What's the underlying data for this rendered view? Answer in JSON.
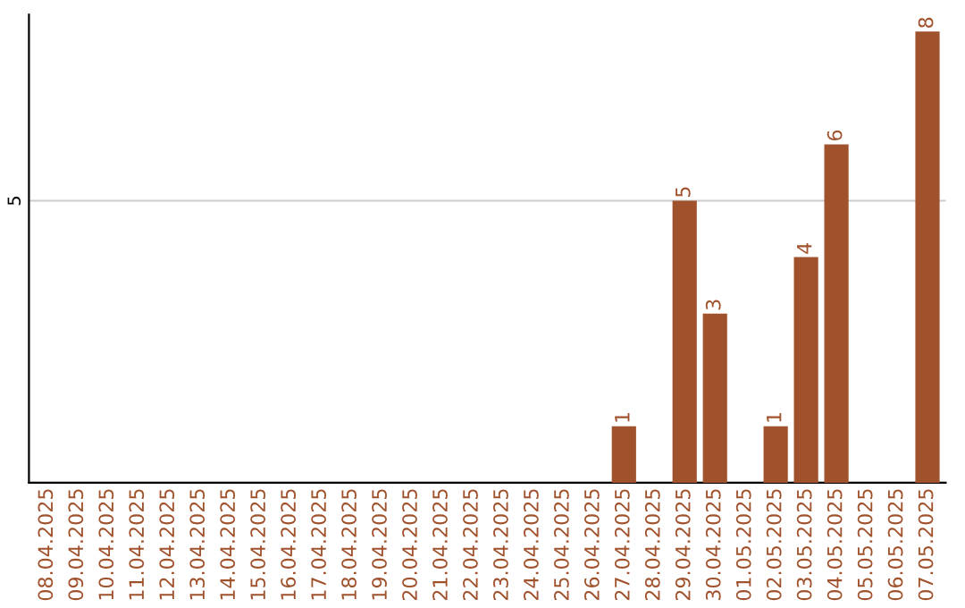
{
  "chart_data": {
    "type": "bar",
    "categories": [
      "08.04.2025",
      "09.04.2025",
      "10.04.2025",
      "11.04.2025",
      "12.04.2025",
      "13.04.2025",
      "14.04.2025",
      "15.04.2025",
      "16.04.2025",
      "17.04.2025",
      "18.04.2025",
      "19.04.2025",
      "20.04.2025",
      "21.04.2025",
      "22.04.2025",
      "23.04.2025",
      "24.04.2025",
      "25.04.2025",
      "26.04.2025",
      "27.04.2025",
      "28.04.2025",
      "29.04.2025",
      "30.04.2025",
      "01.05.2025",
      "02.05.2025",
      "03.05.2025",
      "04.05.2025",
      "05.05.2025",
      "06.05.2025",
      "07.05.2025"
    ],
    "values": [
      null,
      null,
      null,
      null,
      null,
      null,
      null,
      null,
      null,
      null,
      null,
      null,
      null,
      null,
      null,
      null,
      null,
      null,
      null,
      1,
      null,
      5,
      3,
      null,
      1,
      4,
      6,
      null,
      null,
      8
    ],
    "value_labels": [
      null,
      null,
      null,
      null,
      null,
      null,
      null,
      null,
      null,
      null,
      null,
      null,
      null,
      null,
      null,
      null,
      null,
      null,
      null,
      "1",
      null,
      "5",
      "3",
      null,
      "1",
      "4",
      "6",
      null,
      null,
      "8"
    ],
    "color": "#a0522d",
    "ylim": [
      0,
      8.3
    ],
    "yticks": [
      {
        "value": 0,
        "label": null
      },
      5
    ],
    "grid": "y",
    "legend": false
  }
}
